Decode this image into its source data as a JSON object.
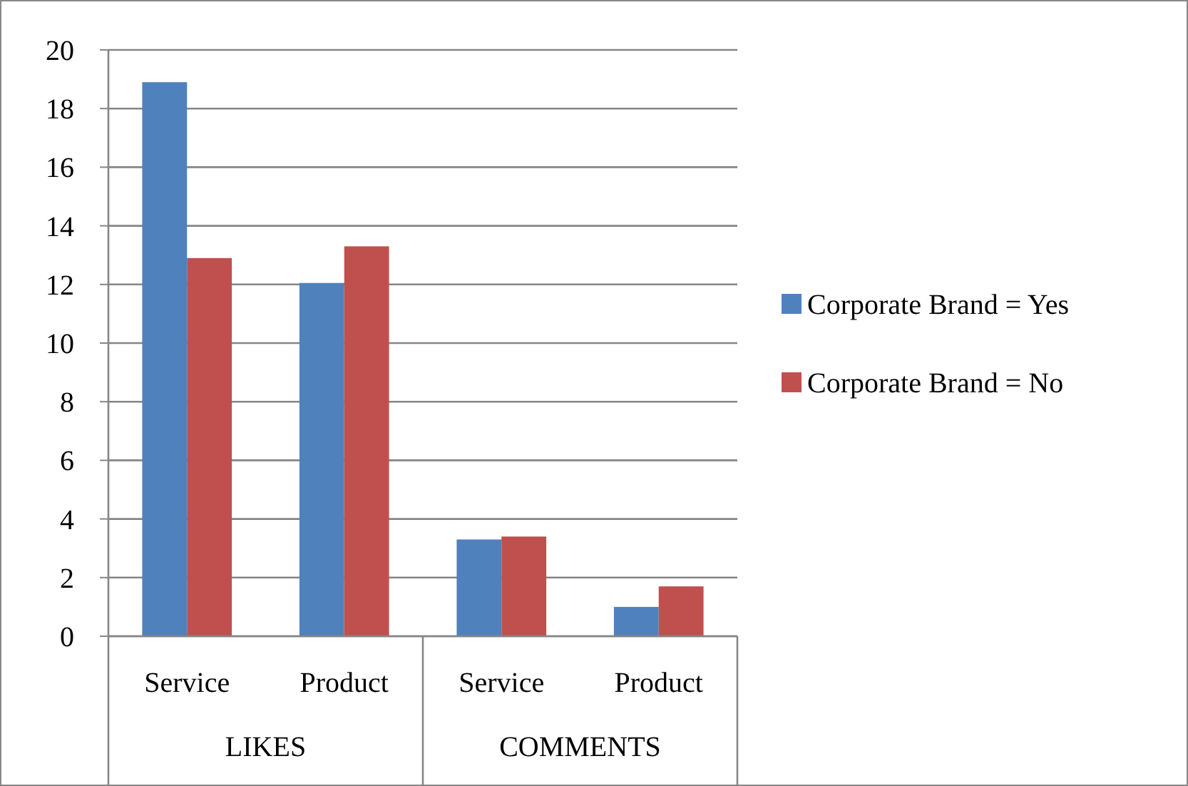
{
  "chart_data": {
    "type": "bar",
    "categories": [
      "Service",
      "Product",
      "Service",
      "Product"
    ],
    "series": [
      {
        "name": "Corporate Brand = Yes",
        "color": "#4f81bd",
        "values": [
          18.9,
          12.05,
          3.3,
          1.0
        ]
      },
      {
        "name": "Corporate Brand = No",
        "color": "#c0504d",
        "values": [
          12.9,
          13.3,
          3.4,
          1.7
        ]
      }
    ],
    "annotations": [
      "LIKES",
      "COMMENTS"
    ],
    "ylim": [
      0,
      20
    ],
    "yticks": [
      0,
      2,
      4,
      6,
      8,
      10,
      12,
      14,
      16,
      18,
      20
    ],
    "grid": "y",
    "legend": "right"
  }
}
